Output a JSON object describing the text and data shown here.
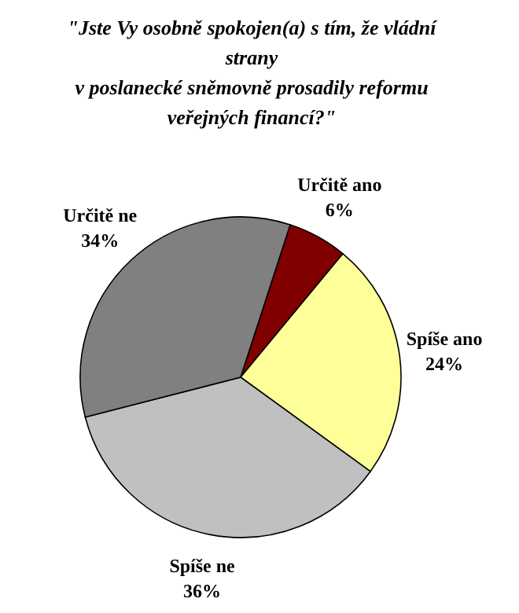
{
  "chart_data": {
    "type": "pie",
    "title": "\"Jste Vy osobně spokojen(a) s tím, že vládní\nstrany\nv poslanecké sněmovně prosadily reformu\nveřejných financí?\"",
    "categories": [
      "Určitě ano",
      "Spíše ano",
      "Spíše ne",
      "Určitě ne"
    ],
    "values": [
      6,
      24,
      36,
      34
    ],
    "colors": [
      "#800000",
      "#ffff99",
      "#c0c0c0",
      "#808080"
    ],
    "value_labels": [
      "6%",
      "24%",
      "36%",
      "34%"
    ]
  }
}
